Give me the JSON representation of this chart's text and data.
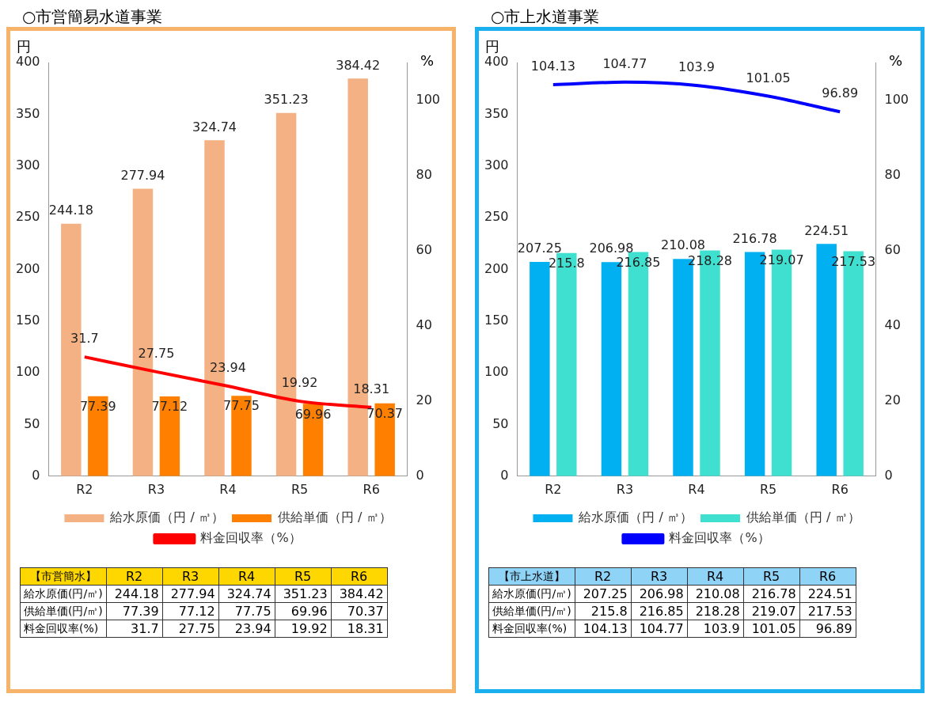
{
  "chart_data": [
    {
      "type": "bar",
      "title": "○市営簡易水道事業",
      "ylabel": "円",
      "y2label": "%",
      "categories": [
        "R2",
        "R3",
        "R4",
        "R5",
        "R6"
      ],
      "series": [
        {
          "name": "給水原価（円 / ㎥）",
          "color": "#f4b183",
          "values": [
            244.18,
            277.94,
            324.74,
            351.23,
            384.42
          ]
        },
        {
          "name": "供給単価（円 / ㎥）",
          "color": "#ff8000",
          "values": [
            77.39,
            77.12,
            77.75,
            69.96,
            70.37
          ]
        },
        {
          "name": "料金回収率（%）",
          "type": "line",
          "axis": "y2",
          "color": "#ff0000",
          "values": [
            31.7,
            27.75,
            23.94,
            19.92,
            18.31
          ]
        }
      ],
      "ylim": [
        0,
        400
      ],
      "yticks": [
        0,
        50,
        100,
        150,
        200,
        250,
        300,
        350,
        400
      ],
      "y2lim": [
        0,
        110
      ],
      "y2ticks": [
        0,
        20,
        40,
        60,
        80,
        100
      ],
      "grid": false,
      "legend": "bottom",
      "data_labels": true,
      "marker": "none"
    },
    {
      "type": "bar",
      "title": "○市上水道事業",
      "ylabel": "円",
      "y2label": "%",
      "categories": [
        "R2",
        "R3",
        "R4",
        "R5",
        "R6"
      ],
      "series": [
        {
          "name": "給水原価（円 / ㎥）",
          "color": "#00b0f0",
          "values": [
            207.25,
            206.98,
            210.08,
            216.78,
            224.51
          ]
        },
        {
          "name": "供給単価（円 / ㎥）",
          "color": "#40e0d0",
          "values": [
            215.8,
            216.85,
            218.28,
            219.07,
            217.53
          ]
        },
        {
          "name": "料金回収率（%）",
          "type": "line",
          "axis": "y2",
          "color": "#0000ff",
          "values": [
            104.13,
            104.77,
            103.9,
            101.05,
            96.89
          ]
        }
      ],
      "ylim": [
        0,
        400
      ],
      "yticks": [
        0,
        50,
        100,
        150,
        200,
        250,
        300,
        350,
        400
      ],
      "y2lim": [
        0,
        110
      ],
      "y2ticks": [
        0,
        20,
        40,
        60,
        80,
        100
      ],
      "grid": false,
      "legend": "bottom",
      "data_labels": true,
      "marker": "none"
    },
    {
      "type": "other",
      "legend_title": "【市営簡水】",
      "categories": [
        "R2",
        "R3",
        "R4",
        "R5",
        "R6"
      ],
      "data_labels": true,
      "series": [
        {
          "name": "給水原価(円/㎥)",
          "values": [
            244.18,
            277.94,
            324.74,
            351.23,
            384.42
          ]
        },
        {
          "name": "供給単価(円/㎥)",
          "values": [
            77.39,
            77.12,
            77.75,
            69.96,
            70.37
          ]
        },
        {
          "name": "料金回収率(%)",
          "values": [
            31.7,
            27.75,
            23.94,
            19.92,
            18.31
          ]
        }
      ]
    },
    {
      "type": "other",
      "legend_title": "【市上水道】",
      "categories": [
        "R2",
        "R3",
        "R4",
        "R5",
        "R6"
      ],
      "data_labels": true,
      "series": [
        {
          "name": "給水原価(円/㎥)",
          "values": [
            207.25,
            206.98,
            210.08,
            216.78,
            224.51
          ]
        },
        {
          "name": "供給単価(円/㎥)",
          "values": [
            215.8,
            216.85,
            218.28,
            219.07,
            217.53
          ]
        },
        {
          "name": "料金回収率(%)",
          "values": [
            104.13,
            104.77,
            103.9,
            101.05,
            96.89
          ]
        }
      ]
    }
  ]
}
